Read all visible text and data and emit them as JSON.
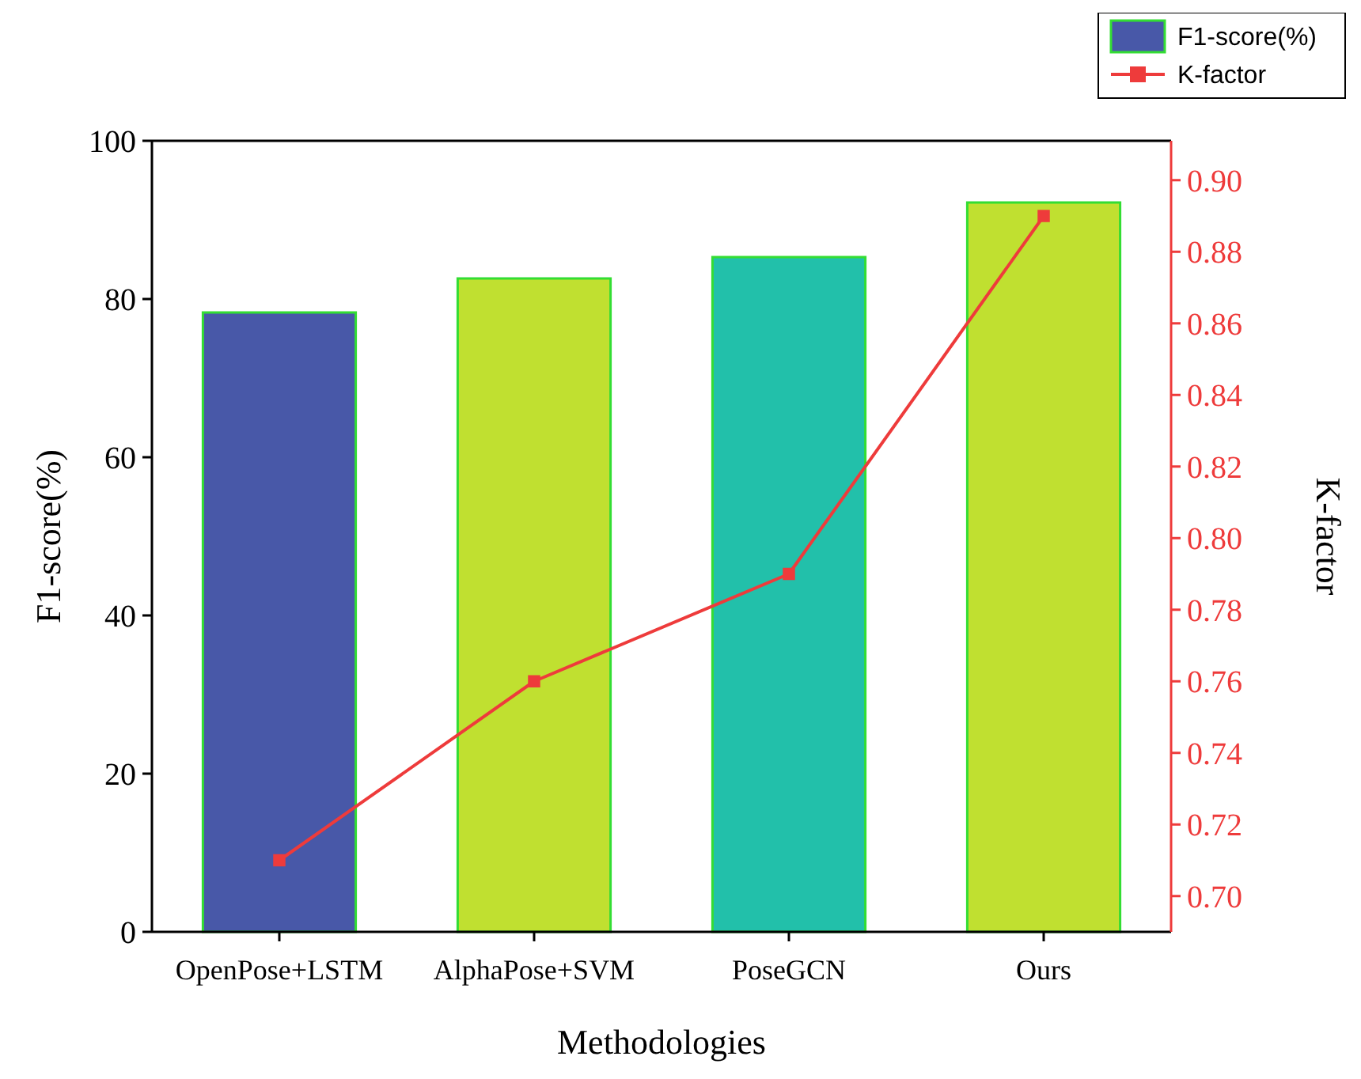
{
  "chart_data": {
    "type": "bar",
    "xlabel": "Methodologies",
    "ylabel": "F1-score(%)",
    "y2label": "K-factor",
    "categories": [
      "OpenPose+LSTM",
      "AlphaPose+SVM",
      "PoseGCN",
      "Ours"
    ],
    "series": [
      {
        "name": "F1-score(%)",
        "color": "#4858a8",
        "colors": [
          "#4858a8",
          "#c0e030",
          "#22c0aa",
          "#c0e030"
        ],
        "values": [
          78.3,
          82.6,
          85.3,
          92.2
        ]
      },
      {
        "name": "K-factor",
        "type": "line",
        "axis": "y2",
        "color": "#ee3b3b",
        "marker": "square",
        "line_style": "solid",
        "values": [
          0.71,
          0.76,
          0.79,
          0.89
        ]
      }
    ],
    "ylim": [
      0,
      100
    ],
    "yticks": [
      0,
      20,
      40,
      60,
      80,
      100
    ],
    "y2lim": [
      0.69,
      0.911
    ],
    "y2ticks": [
      {
        "value": 0.7,
        "label": "0.70"
      },
      {
        "value": 0.72,
        "label": "0.72"
      },
      {
        "value": 0.74,
        "label": "0.74"
      },
      {
        "value": 0.76,
        "label": "0.76"
      },
      {
        "value": 0.78,
        "label": "0.78"
      },
      {
        "value": 0.8,
        "label": "0.80"
      },
      {
        "value": 0.82,
        "label": "0.82"
      },
      {
        "value": 0.84,
        "label": "0.84"
      },
      {
        "value": 0.86,
        "label": "0.86"
      },
      {
        "value": 0.88,
        "label": "0.88"
      },
      {
        "value": 0.9,
        "label": "0.90"
      }
    ],
    "grid": false,
    "legend": "top right"
  }
}
